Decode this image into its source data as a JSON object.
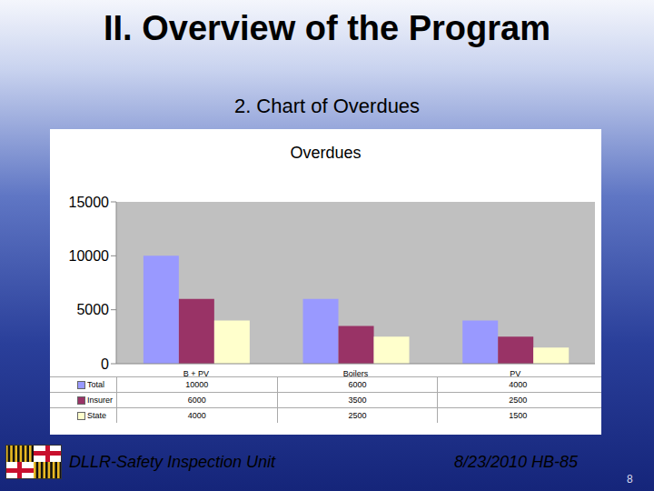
{
  "title": "II. Overview of the Program",
  "subtitle": "2. Chart of Overdues",
  "footer": {
    "left": "DLLR-Safety Inspection Unit",
    "right": "8/23/2010 HB-85",
    "page": "8"
  },
  "chart_data": {
    "type": "bar",
    "title": "Overdues",
    "categories": [
      "B + PV",
      "Boilers",
      "PV"
    ],
    "series": [
      {
        "name": "Total",
        "color": "#9999ff",
        "values": [
          10000,
          6000,
          4000
        ]
      },
      {
        "name": "Insurer",
        "color": "#993366",
        "values": [
          6000,
          3500,
          2500
        ]
      },
      {
        "name": "State",
        "color": "#ffffcc",
        "values": [
          4000,
          2500,
          1500
        ]
      }
    ],
    "ylim": [
      0,
      15000
    ],
    "yticks": [
      0,
      5000,
      10000,
      15000
    ],
    "grid": false
  }
}
